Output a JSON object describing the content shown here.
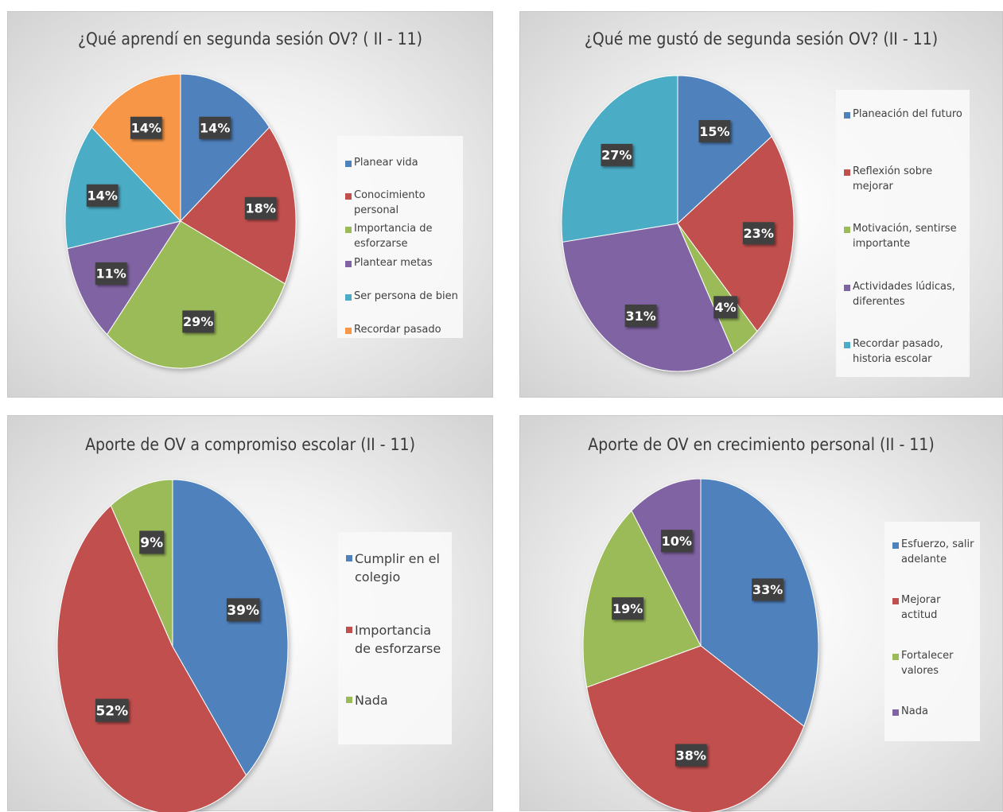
{
  "chart_data": [
    {
      "type": "pie",
      "title": "¿Qué aprendí en segunda sesión OV? ( II - 11)",
      "categories": [
        "Planear vida",
        "Conocimiento personal",
        "Importancia de esforzarse",
        "Plantear metas",
        "Ser persona de bien",
        "Recordar pasado"
      ],
      "values": [
        14,
        18,
        29,
        11,
        14,
        14
      ],
      "data_labels": [
        "14%",
        "18%",
        "29%",
        "11%",
        "14%",
        "14%"
      ],
      "colors": [
        "#4f81bd",
        "#c0504d",
        "#9bbb59",
        "#8064a2",
        "#4bacc6",
        "#f79646"
      ],
      "legend_position": "right"
    },
    {
      "type": "pie",
      "title": "¿Qué me gustó de segunda sesión OV? (II - 11)",
      "categories": [
        "Planeación del futuro",
        "Reflexión sobre mejorar",
        "Motivación, sentirse importante",
        "Actividades lúdicas, diferentes",
        "Recordar pasado, historia escolar"
      ],
      "values": [
        15,
        23,
        4,
        31,
        27
      ],
      "data_labels": [
        "15%",
        "23%",
        "4%",
        "31%",
        "27%"
      ],
      "colors": [
        "#4f81bd",
        "#c0504d",
        "#9bbb59",
        "#8064a2",
        "#4bacc6"
      ],
      "legend_position": "right"
    },
    {
      "type": "pie",
      "title": "Aporte de OV a compromiso escolar (II - 11)",
      "categories": [
        "Cumplir en el colegio",
        "Importancia de esforzarse",
        "Nada"
      ],
      "values": [
        39,
        52,
        9
      ],
      "data_labels": [
        "39%",
        "52%",
        "9%"
      ],
      "colors": [
        "#4f81bd",
        "#c0504d",
        "#9bbb59"
      ],
      "legend_position": "right"
    },
    {
      "type": "pie",
      "title": "Aporte de OV en crecimiento personal (II - 11)",
      "categories": [
        "Esfuerzo, salir adelante",
        "Mejorar actitud",
        "Fortalecer valores",
        "Nada"
      ],
      "values": [
        33,
        38,
        19,
        10
      ],
      "data_labels": [
        "33%",
        "38%",
        "19%",
        "10%"
      ],
      "colors": [
        "#4f81bd",
        "#c0504d",
        "#9bbb59",
        "#8064a2"
      ],
      "legend_position": "right"
    }
  ]
}
